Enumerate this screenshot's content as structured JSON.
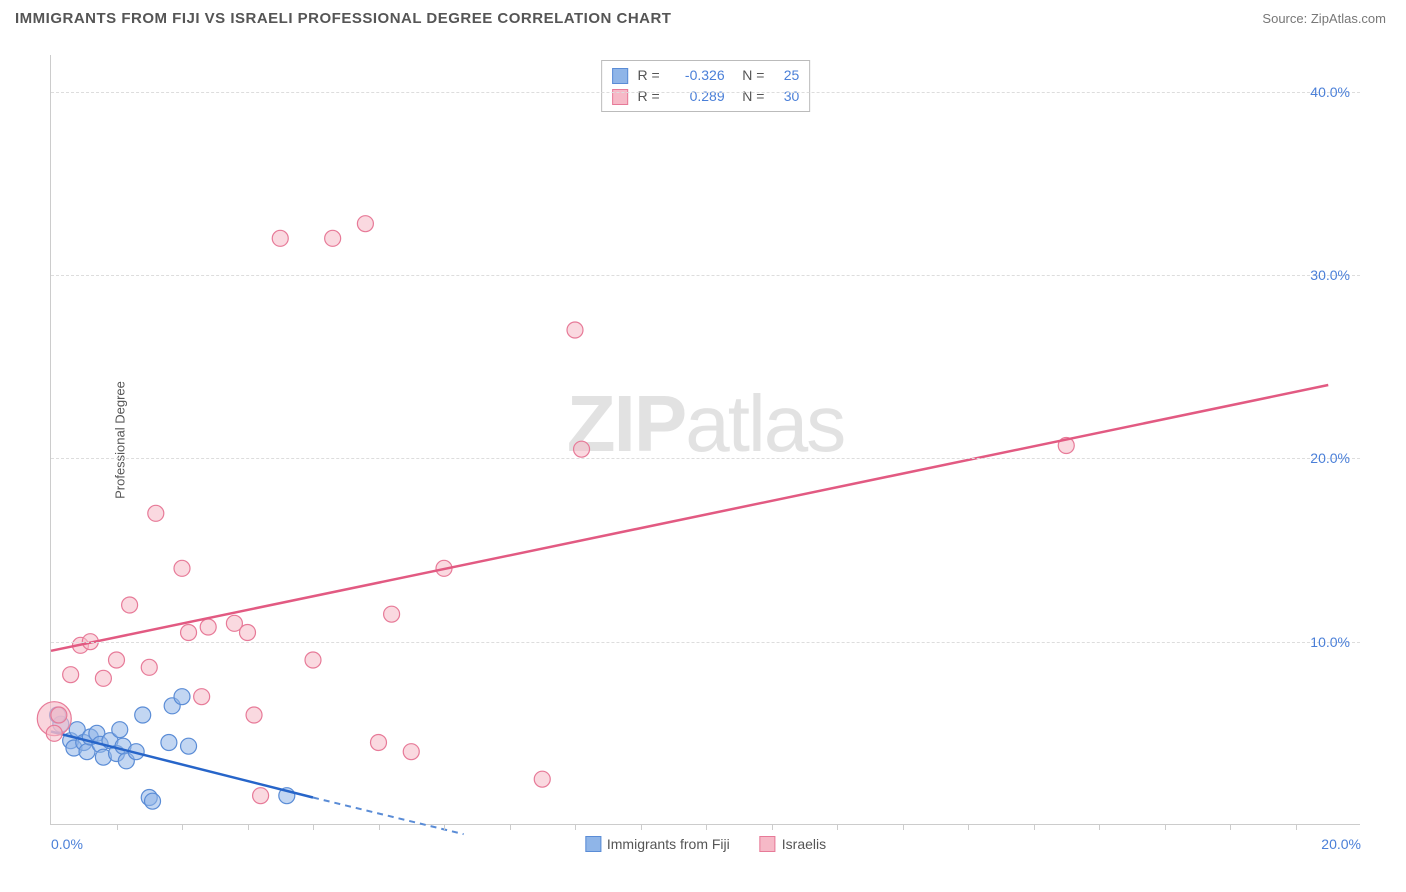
{
  "header": {
    "title": "IMMIGRANTS FROM FIJI VS ISRAELI PROFESSIONAL DEGREE CORRELATION CHART",
    "source_label": "Source:",
    "source_value": "ZipAtlas.com"
  },
  "watermark": {
    "part1": "ZIP",
    "part2": "atlas"
  },
  "chart": {
    "type": "scatter",
    "y_axis_label": "Professional Degree",
    "xlim": [
      0,
      20
    ],
    "ylim": [
      0,
      42
    ],
    "x_ticks": [
      0,
      20
    ],
    "x_tick_labels": [
      "0.0%",
      "20.0%"
    ],
    "x_minor_ticks": [
      1,
      2,
      3,
      4,
      5,
      6,
      7,
      8,
      9,
      10,
      11,
      12,
      13,
      14,
      15,
      16,
      17,
      18,
      19
    ],
    "y_gridlines": [
      10,
      20,
      30,
      40
    ],
    "y_tick_labels": [
      "10.0%",
      "20.0%",
      "30.0%",
      "40.0%"
    ],
    "grid_color": "#dddddd",
    "axis_color": "#cccccc",
    "background_color": "#ffffff",
    "y_label_color": "#4a7fd8",
    "x_label_color": "#4a7fd8",
    "series": [
      {
        "name": "Immigrants from Fiji",
        "point_color": "#8fb5e8",
        "point_stroke": "#5a8cd6",
        "line_color": "#2765c9",
        "line_dash_color": "#5a8cd6",
        "r_value": "-0.326",
        "n_value": "25",
        "point_radius": 8,
        "points": [
          [
            0.15,
            5.5
          ],
          [
            0.3,
            4.6
          ],
          [
            0.35,
            4.2
          ],
          [
            0.4,
            5.2
          ],
          [
            0.5,
            4.5
          ],
          [
            0.55,
            4.0
          ],
          [
            0.6,
            4.8
          ],
          [
            0.7,
            5.0
          ],
          [
            0.75,
            4.4
          ],
          [
            0.8,
            3.7
          ],
          [
            0.9,
            4.6
          ],
          [
            1.0,
            3.9
          ],
          [
            1.05,
            5.2
          ],
          [
            1.1,
            4.3
          ],
          [
            1.15,
            3.5
          ],
          [
            1.3,
            4.0
          ],
          [
            1.4,
            6.0
          ],
          [
            1.5,
            1.5
          ],
          [
            1.55,
            1.3
          ],
          [
            1.8,
            4.5
          ],
          [
            1.85,
            6.5
          ],
          [
            2.0,
            7.0
          ],
          [
            2.1,
            4.3
          ],
          [
            3.6,
            1.6
          ],
          [
            0.1,
            6.0
          ]
        ],
        "trend_solid": {
          "x1": 0,
          "y1": 5.1,
          "x2": 4.0,
          "y2": 1.5
        },
        "trend_dashed": {
          "x1": 4.0,
          "y1": 1.5,
          "x2": 6.3,
          "y2": -0.5
        }
      },
      {
        "name": "Israelis",
        "point_color": "#f6b9c7",
        "point_stroke": "#e77a98",
        "line_color": "#e25a82",
        "r_value": "0.289",
        "n_value": "30",
        "point_radius": 8,
        "points": [
          [
            0.12,
            6.0
          ],
          [
            0.3,
            8.2
          ],
          [
            0.45,
            9.8
          ],
          [
            0.6,
            10.0
          ],
          [
            0.8,
            8.0
          ],
          [
            1.0,
            9.0
          ],
          [
            1.2,
            12.0
          ],
          [
            1.5,
            8.6
          ],
          [
            1.6,
            17.0
          ],
          [
            2.0,
            14.0
          ],
          [
            2.1,
            10.5
          ],
          [
            2.4,
            10.8
          ],
          [
            2.8,
            11.0
          ],
          [
            3.0,
            10.5
          ],
          [
            3.1,
            6.0
          ],
          [
            3.2,
            1.6
          ],
          [
            3.5,
            32.0
          ],
          [
            4.0,
            9.0
          ],
          [
            4.3,
            32.0
          ],
          [
            4.8,
            32.8
          ],
          [
            5.0,
            4.5
          ],
          [
            5.2,
            11.5
          ],
          [
            5.5,
            4.0
          ],
          [
            6.0,
            14.0
          ],
          [
            7.5,
            2.5
          ],
          [
            8.0,
            27.0
          ],
          [
            8.1,
            20.5
          ],
          [
            15.5,
            20.7
          ],
          [
            2.3,
            7.0
          ],
          [
            0.05,
            5.0
          ]
        ],
        "large_point": {
          "x": 0.05,
          "y": 5.8,
          "r": 17
        },
        "trend_solid": {
          "x1": 0,
          "y1": 9.5,
          "x2": 19.5,
          "y2": 24.0
        }
      }
    ],
    "legend_bottom": [
      {
        "label": "Immigrants from Fiji",
        "fill": "#8fb5e8",
        "stroke": "#5a8cd6"
      },
      {
        "label": "Israelis",
        "fill": "#f6b9c7",
        "stroke": "#e77a98"
      }
    ],
    "legend_top": {
      "rows": [
        {
          "fill": "#8fb5e8",
          "stroke": "#5a8cd6",
          "r_label": "R =",
          "r_value": "-0.326",
          "n_label": "N =",
          "n_value": "25"
        },
        {
          "fill": "#f6b9c7",
          "stroke": "#e77a98",
          "r_label": "R =",
          "r_value": "0.289",
          "n_label": "N =",
          "n_value": "30"
        }
      ]
    }
  }
}
